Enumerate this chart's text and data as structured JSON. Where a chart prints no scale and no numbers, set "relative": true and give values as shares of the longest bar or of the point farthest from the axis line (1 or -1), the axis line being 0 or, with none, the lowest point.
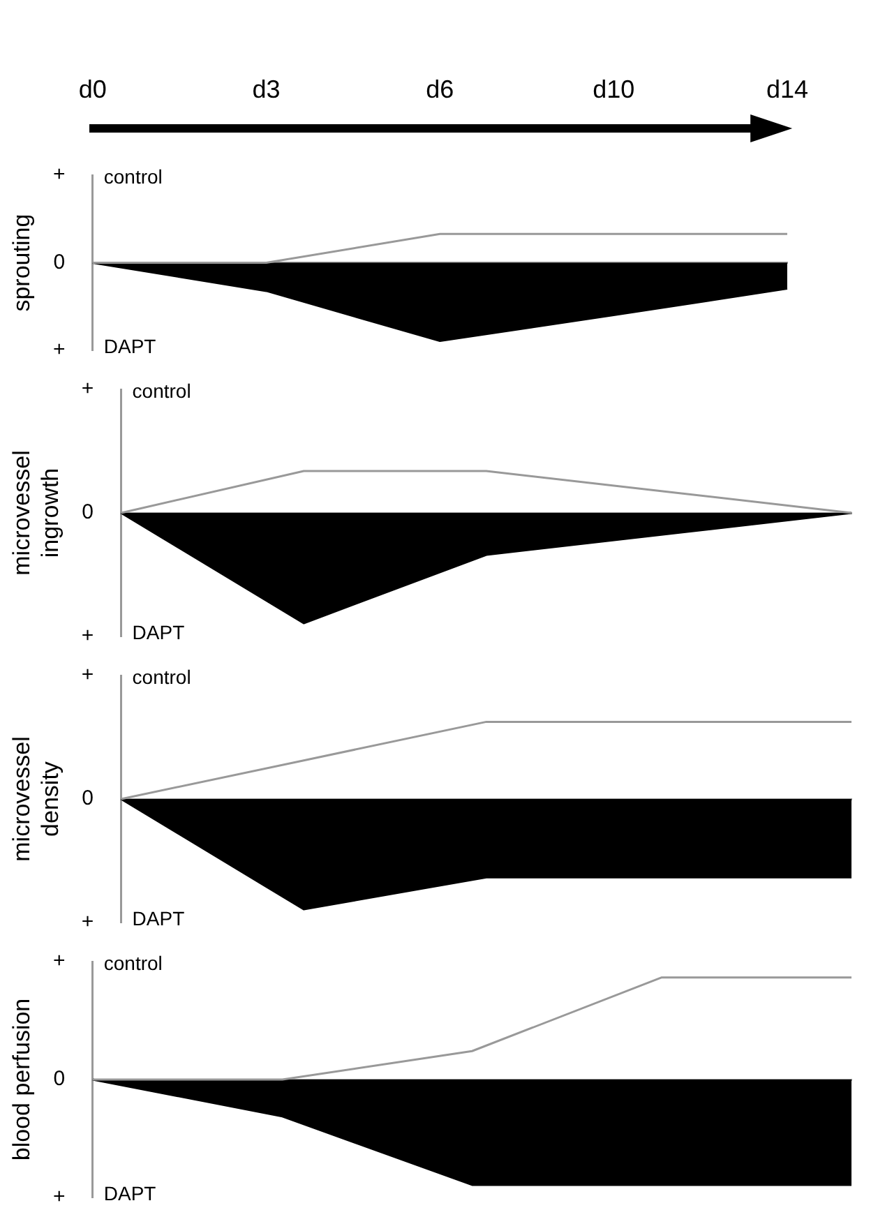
{
  "chart_data": [
    {
      "type": "line",
      "ylabel": "sprouting",
      "categories": [
        "d0",
        "d3",
        "d6",
        "d10",
        "d14"
      ],
      "relative": true,
      "tick_labels": "x",
      "legend": false,
      "annotations": [
        "+",
        "0",
        "+",
        "control",
        "DAPT"
      ],
      "series": [
        {
          "color": "#999999",
          "values": [
            0,
            0,
            0.37,
            0.37,
            0.37
          ]
        },
        {
          "type": "area",
          "color": "#000000",
          "values": [
            0,
            -0.36,
            -1,
            -0.67,
            -0.33
          ]
        }
      ]
    },
    {
      "type": "line",
      "ylabel": "microvessel\ningrowth",
      "categories": [
        null,
        null,
        null,
        null,
        null
      ],
      "relative": true,
      "tick_labels": false,
      "legend": false,
      "annotations": [
        "+",
        "0",
        "+",
        "control",
        "DAPT"
      ],
      "series": [
        {
          "color": "#999999",
          "values": [
            0,
            0.38,
            0.38,
            0.19,
            0
          ]
        },
        {
          "type": "area",
          "color": "#000000",
          "values": [
            0,
            -1,
            -0.38,
            -0.19,
            0
          ]
        }
      ]
    },
    {
      "type": "line",
      "ylabel": "microvessel\ndensity",
      "categories": [
        null,
        null,
        null,
        null,
        null
      ],
      "relative": true,
      "tick_labels": false,
      "legend": false,
      "annotations": [
        "+",
        "0",
        "+",
        "control",
        "DAPT"
      ],
      "series": [
        {
          "color": "#999999",
          "values": [
            0,
            0.35,
            0.7,
            0.7,
            0.7
          ]
        },
        {
          "type": "area",
          "color": "#000000",
          "values": [
            0,
            -1,
            -0.71,
            -0.71,
            -0.71
          ]
        }
      ]
    },
    {
      "type": "line",
      "ylabel": "blood perfusion",
      "categories": [
        null,
        null,
        null,
        null,
        null
      ],
      "relative": true,
      "tick_labels": false,
      "legend": false,
      "annotations": [
        "+",
        "0",
        "+",
        "control",
        "DAPT"
      ],
      "series": [
        {
          "color": "#999999",
          "values": [
            0,
            0,
            0.27,
            0.97,
            0.97
          ]
        },
        {
          "type": "area",
          "color": "#000000",
          "values": [
            0,
            -0.35,
            -1,
            -1,
            -1
          ]
        }
      ]
    }
  ]
}
